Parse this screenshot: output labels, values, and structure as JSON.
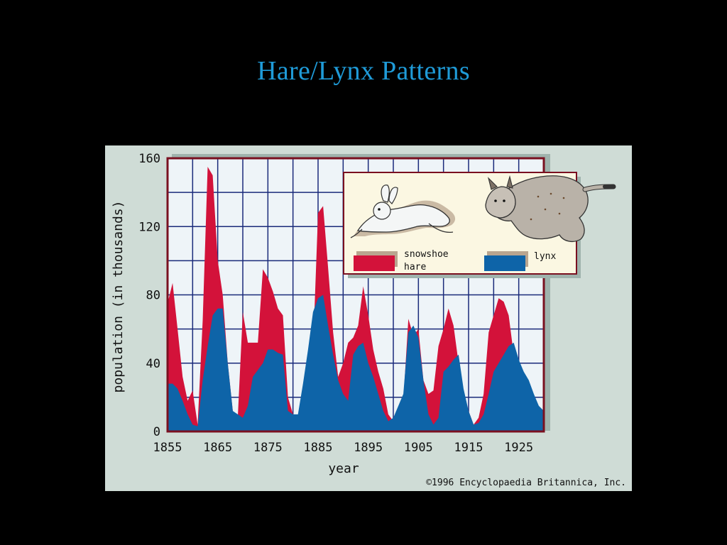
{
  "slide": {
    "title": "Hare/Lynx Patterns"
  },
  "colors": {
    "slide_background": "#000000",
    "title": "#1f9bd8",
    "figure_background": "#cfdcd6",
    "plot_background": "#eef4f8",
    "grid": "#1a2a7a",
    "frame": "#7a1020",
    "hare": "#d3123a",
    "lynx": "#0e64a8",
    "legend_background": "#fbf7e2"
  },
  "icons": {
    "hare": "snowshoe-hare-illustration",
    "lynx": "lynx-illustration"
  },
  "credit": "©1996 Encyclopaedia Britannica, Inc.",
  "chart_data": {
    "type": "area",
    "title": "",
    "xlabel": "year",
    "ylabel": "population (in thousands)",
    "xlim": [
      1855,
      1930
    ],
    "ylim": [
      0,
      160
    ],
    "x_ticks": [
      1855,
      1865,
      1875,
      1885,
      1895,
      1905,
      1915,
      1925
    ],
    "y_ticks": [
      0,
      40,
      80,
      120,
      160
    ],
    "grid": true,
    "legend": {
      "position": "top-right",
      "entries": [
        {
          "label_lines": [
            "snowshoe",
            "hare"
          ],
          "series": "hare"
        },
        {
          "label_lines": [
            "lynx"
          ],
          "series": "lynx"
        }
      ]
    },
    "series": [
      {
        "name": "snowshoe hare",
        "key": "hare",
        "x": [
          1855,
          1856,
          1857,
          1858,
          1859,
          1860,
          1861,
          1862,
          1863,
          1864,
          1865,
          1866,
          1867,
          1868,
          1869,
          1870,
          1871,
          1872,
          1873,
          1874,
          1875,
          1876,
          1877,
          1878,
          1879,
          1880,
          1881,
          1882,
          1883,
          1884,
          1885,
          1886,
          1887,
          1888,
          1889,
          1890,
          1891,
          1892,
          1893,
          1894,
          1895,
          1896,
          1897,
          1898,
          1899,
          1900,
          1901,
          1902,
          1903,
          1904,
          1905,
          1906,
          1907,
          1908,
          1909,
          1910,
          1911,
          1912,
          1913,
          1914,
          1915,
          1916,
          1917,
          1918,
          1919,
          1920,
          1921,
          1922,
          1923,
          1924,
          1925,
          1926,
          1927,
          1928,
          1929,
          1930
        ],
        "values": [
          75,
          87,
          60,
          32,
          18,
          24,
          4,
          65,
          155,
          150,
          100,
          80,
          40,
          12,
          8,
          70,
          52,
          52,
          52,
          95,
          90,
          82,
          72,
          68,
          20,
          10,
          5,
          6,
          20,
          48,
          128,
          132,
          96,
          58,
          32,
          40,
          52,
          55,
          62,
          85,
          68,
          48,
          35,
          25,
          10,
          6,
          8,
          18,
          66,
          56,
          60,
          30,
          22,
          24,
          50,
          60,
          72,
          62,
          40,
          20,
          12,
          4,
          8,
          22,
          58,
          68,
          78,
          76,
          68,
          45,
          30,
          22,
          15,
          10,
          8,
          4
        ]
      },
      {
        "name": "lynx",
        "key": "lynx",
        "x": [
          1855,
          1856,
          1857,
          1858,
          1859,
          1860,
          1861,
          1862,
          1863,
          1864,
          1865,
          1866,
          1867,
          1868,
          1869,
          1870,
          1871,
          1872,
          1873,
          1874,
          1875,
          1876,
          1877,
          1878,
          1879,
          1880,
          1881,
          1882,
          1883,
          1884,
          1885,
          1886,
          1887,
          1888,
          1889,
          1890,
          1891,
          1892,
          1893,
          1894,
          1895,
          1896,
          1897,
          1898,
          1899,
          1900,
          1901,
          1902,
          1903,
          1904,
          1905,
          1906,
          1907,
          1908,
          1909,
          1910,
          1911,
          1912,
          1913,
          1914,
          1915,
          1916,
          1917,
          1918,
          1919,
          1920,
          1921,
          1922,
          1923,
          1924,
          1925,
          1926,
          1927,
          1928,
          1929,
          1930
        ],
        "values": [
          28,
          28,
          25,
          18,
          10,
          4,
          3,
          30,
          50,
          68,
          72,
          72,
          40,
          12,
          10,
          8,
          15,
          32,
          36,
          40,
          48,
          48,
          46,
          45,
          12,
          10,
          10,
          28,
          48,
          70,
          78,
          80,
          62,
          45,
          30,
          22,
          18,
          45,
          50,
          52,
          40,
          32,
          22,
          12,
          6,
          8,
          15,
          22,
          58,
          62,
          55,
          30,
          10,
          4,
          8,
          35,
          38,
          42,
          45,
          25,
          12,
          4,
          5,
          10,
          22,
          35,
          40,
          45,
          50,
          52,
          42,
          35,
          30,
          22,
          15,
          12
        ]
      }
    ]
  }
}
